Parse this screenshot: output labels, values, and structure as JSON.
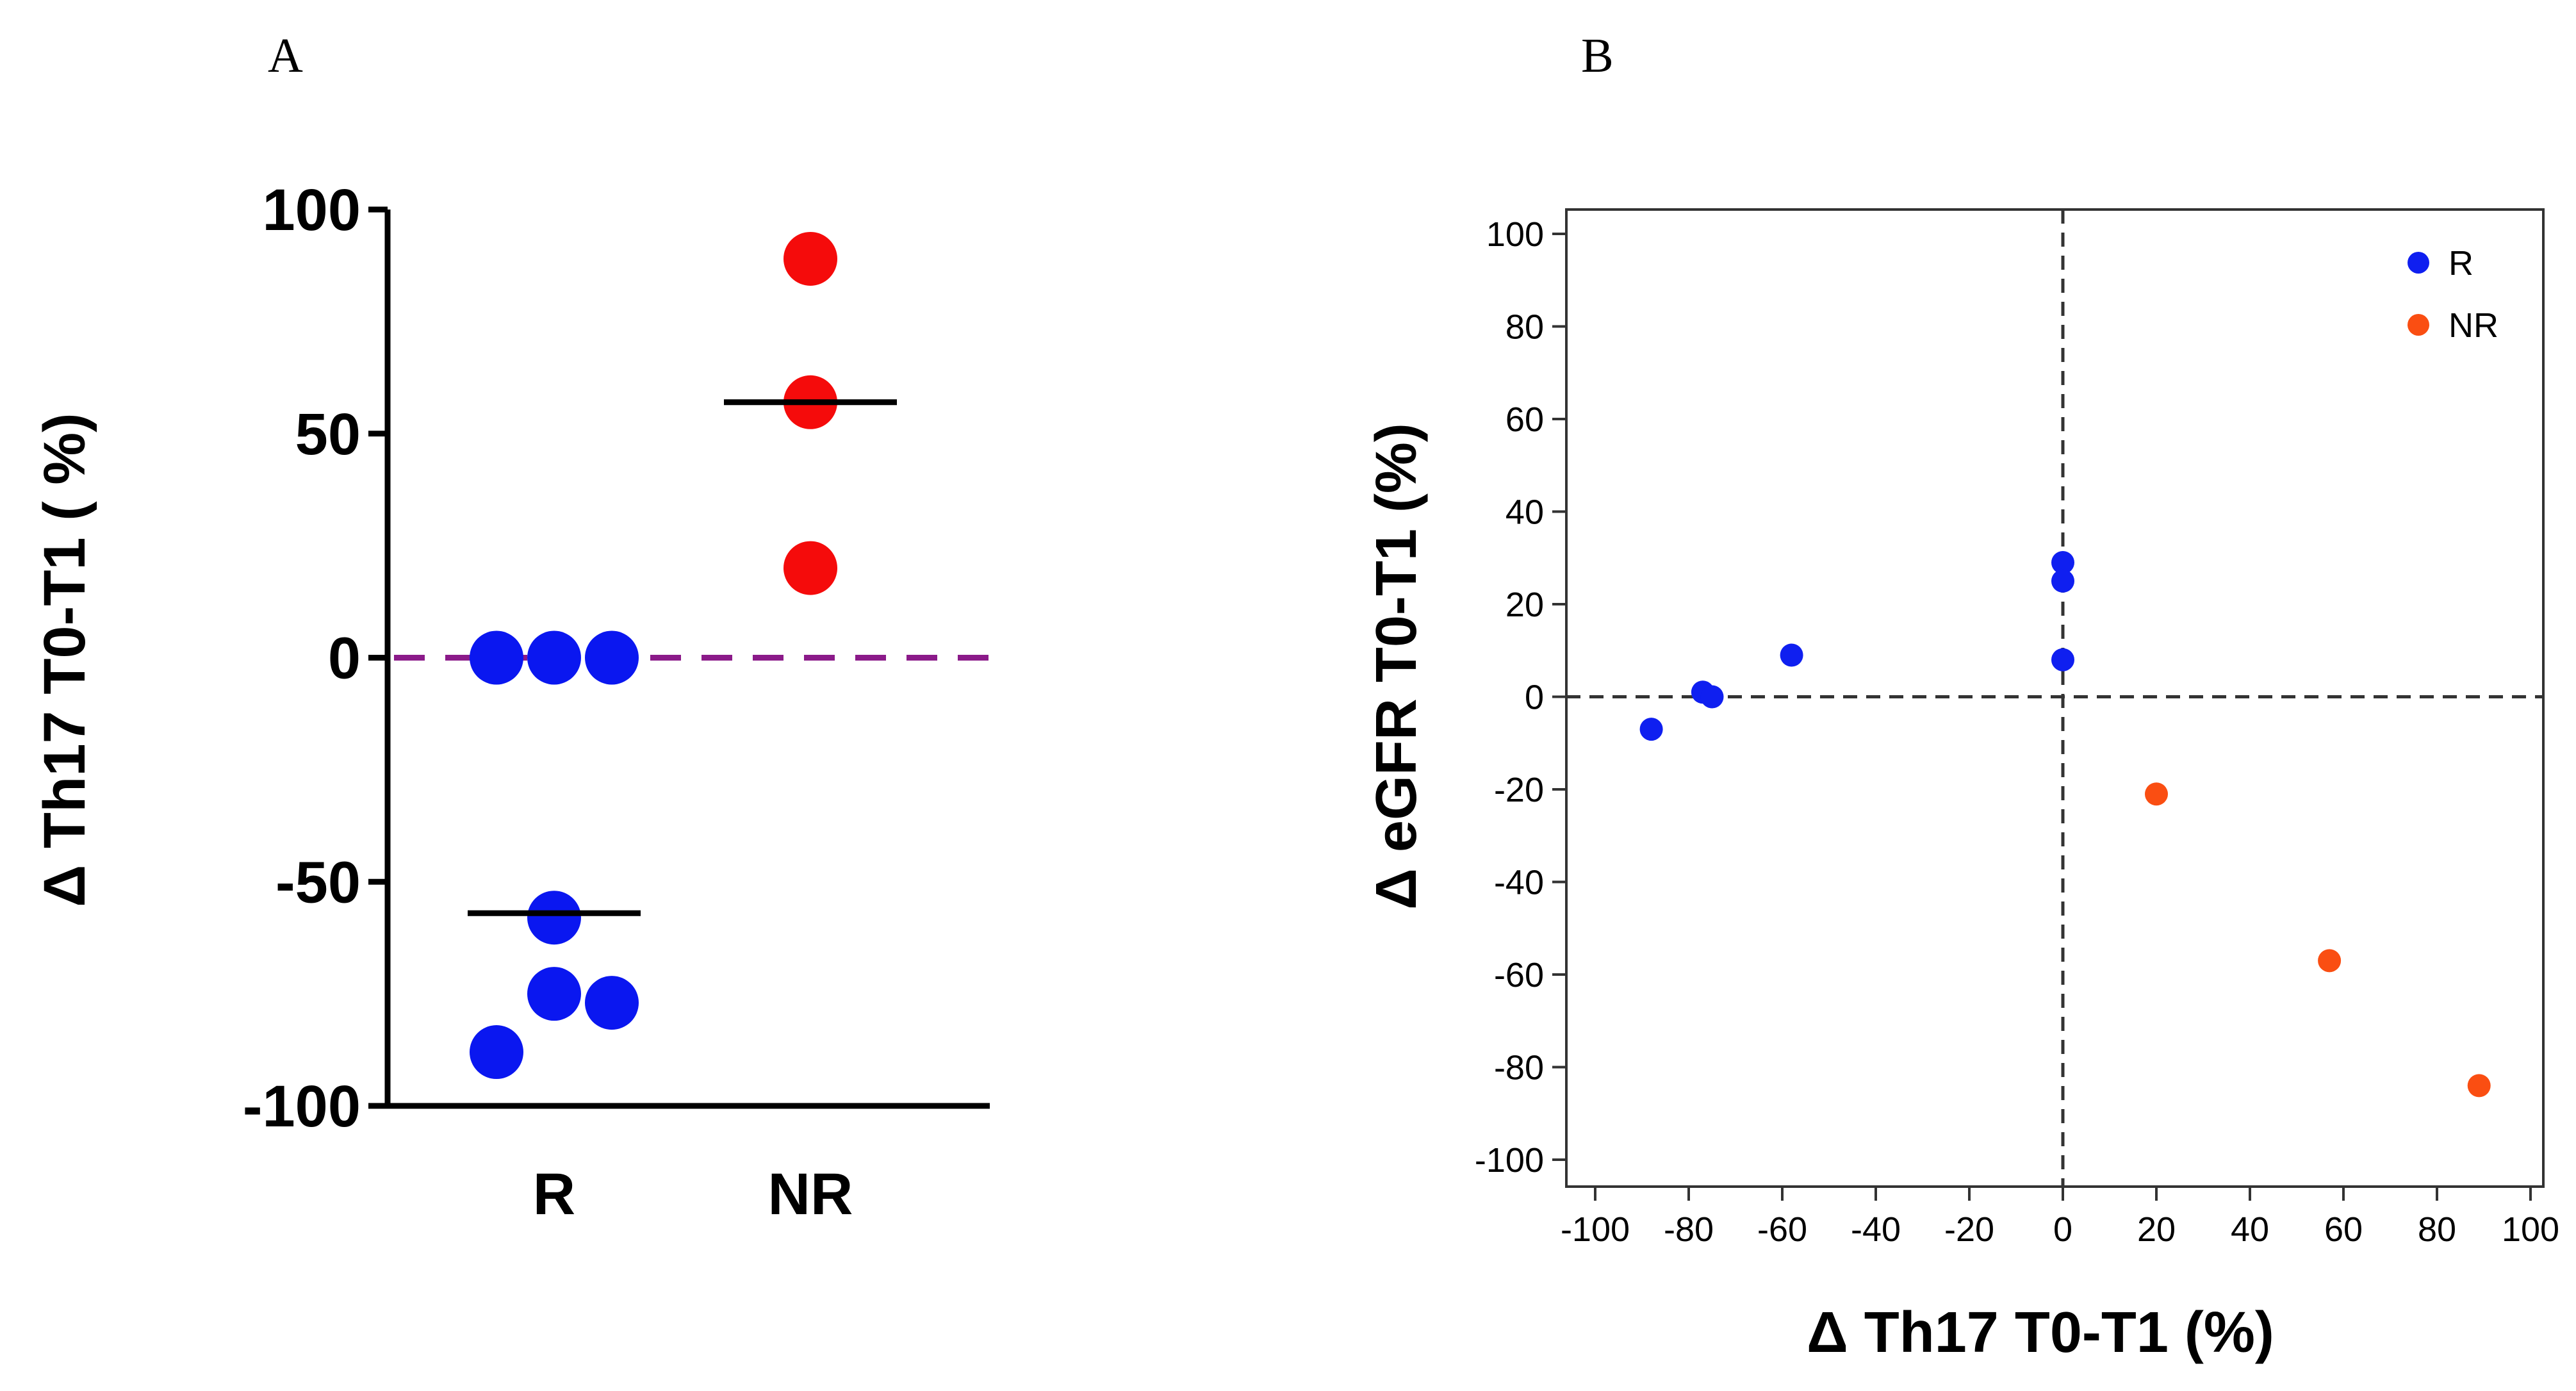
{
  "panels": {
    "a_label": "A",
    "b_label": "B"
  },
  "chart_data": [
    {
      "type": "scatter",
      "panel": "A",
      "title": "",
      "ylabel": "Δ Th17 T0-T1 ( %)",
      "xlabel": "",
      "categories": [
        "R",
        "NR"
      ],
      "ylim": [
        -100,
        100
      ],
      "yticks": [
        100,
        50,
        0,
        -50,
        -100
      ],
      "reference_line": {
        "y": 0,
        "style": "dashed",
        "color": "#8b1a89"
      },
      "series": [
        {
          "name": "R",
          "color": "#0a17f0",
          "points": [
            {
              "category": "R",
              "offset": -1,
              "y": 0
            },
            {
              "category": "R",
              "offset": 0,
              "y": 0
            },
            {
              "category": "R",
              "offset": 1,
              "y": 0
            },
            {
              "category": "R",
              "offset": 0,
              "y": -58
            },
            {
              "category": "R",
              "offset": 0,
              "y": -75
            },
            {
              "category": "R",
              "offset": 1,
              "y": -77
            },
            {
              "category": "R",
              "offset": -1,
              "y": -88
            }
          ],
          "mean": -57
        },
        {
          "name": "NR",
          "color": "#f50b0b",
          "points": [
            {
              "category": "NR",
              "offset": 0,
              "y": 89
            },
            {
              "category": "NR",
              "offset": 0,
              "y": 57
            },
            {
              "category": "NR",
              "offset": 0,
              "y": 20
            }
          ],
          "mean": 57
        }
      ]
    },
    {
      "type": "scatter",
      "panel": "B",
      "title": "",
      "xlabel": "Δ Th17  T0-T1 (%)",
      "ylabel": "Δ eGFR T0-T1 (%)",
      "xlim": [
        -100,
        100
      ],
      "ylim": [
        -100,
        100
      ],
      "xticks": [
        -100,
        -80,
        -60,
        -40,
        -20,
        0,
        20,
        40,
        60,
        80,
        100
      ],
      "yticks": [
        100,
        80,
        60,
        40,
        20,
        0,
        -20,
        -40,
        -60,
        -80,
        -100
      ],
      "reference_lines": {
        "x": 0,
        "y": 0,
        "style": "dashed",
        "color": "#333333"
      },
      "legend_position": "top-right",
      "series": [
        {
          "name": "R",
          "color": "#0f1ff0",
          "x": [
            -88,
            -77,
            -75,
            -58,
            0,
            0,
            0
          ],
          "y": [
            -7,
            1,
            0,
            9,
            29,
            25,
            8
          ]
        },
        {
          "name": "NR",
          "color": "#fa4e12",
          "x": [
            20,
            57,
            89
          ],
          "y": [
            -21,
            -57,
            -84
          ]
        }
      ]
    }
  ]
}
